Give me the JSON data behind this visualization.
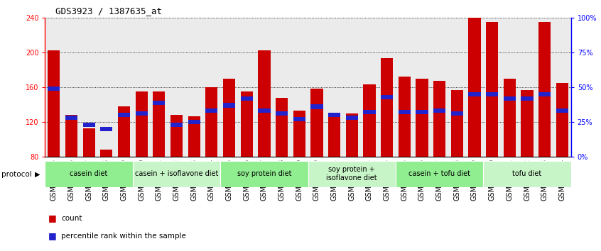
{
  "title": "GDS3923 / 1387635_at",
  "samples": [
    "GSM586045",
    "GSM586046",
    "GSM586047",
    "GSM586048",
    "GSM586049",
    "GSM586050",
    "GSM586051",
    "GSM586052",
    "GSM586053",
    "GSM586054",
    "GSM586055",
    "GSM586056",
    "GSM586057",
    "GSM586058",
    "GSM586059",
    "GSM586060",
    "GSM586061",
    "GSM586062",
    "GSM586063",
    "GSM586064",
    "GSM586065",
    "GSM586066",
    "GSM586067",
    "GSM586068",
    "GSM586069",
    "GSM586070",
    "GSM586071",
    "GSM586072",
    "GSM586073",
    "GSM586074"
  ],
  "counts": [
    202,
    128,
    113,
    88,
    138,
    155,
    155,
    128,
    127,
    160,
    170,
    155,
    202,
    148,
    133,
    158,
    128,
    130,
    163,
    193,
    172,
    170,
    167,
    157,
    240,
    235,
    170,
    157,
    235,
    165
  ],
  "percentile_ranks": [
    49,
    28,
    23,
    20,
    30,
    31,
    39,
    23,
    25,
    33,
    37,
    42,
    33,
    31,
    27,
    36,
    30,
    28,
    32,
    43,
    32,
    32,
    33,
    31,
    45,
    45,
    42,
    42,
    45,
    33
  ],
  "protocols": [
    {
      "label": "casein diet",
      "start": 0,
      "end": 5,
      "color": "#90EE90"
    },
    {
      "label": "casein + isoflavone diet",
      "start": 5,
      "end": 10,
      "color": "#c8f5c8"
    },
    {
      "label": "soy protein diet",
      "start": 10,
      "end": 15,
      "color": "#90EE90"
    },
    {
      "label": "soy protein +\nisoflavone diet",
      "start": 15,
      "end": 20,
      "color": "#c8f5c8"
    },
    {
      "label": "casein + tofu diet",
      "start": 20,
      "end": 25,
      "color": "#90EE90"
    },
    {
      "label": "tofu diet",
      "start": 25,
      "end": 30,
      "color": "#c8f5c8"
    }
  ],
  "ymin": 80,
  "ymax": 240,
  "y_ticks_left": [
    80,
    120,
    160,
    200,
    240
  ],
  "y_ticks_right": [
    0,
    25,
    50,
    75,
    100
  ],
  "bar_color": "#CC0000",
  "blue_color": "#2222CC",
  "bar_width": 0.7,
  "figsize": [
    8.46,
    3.54
  ],
  "dpi": 100,
  "col_bg_color": "#C8C8C8",
  "plot_bg_color": "#FFFFFF",
  "grid_color": "#000000",
  "title_fontsize": 9,
  "tick_fontsize": 7,
  "proto_fontsize": 7
}
